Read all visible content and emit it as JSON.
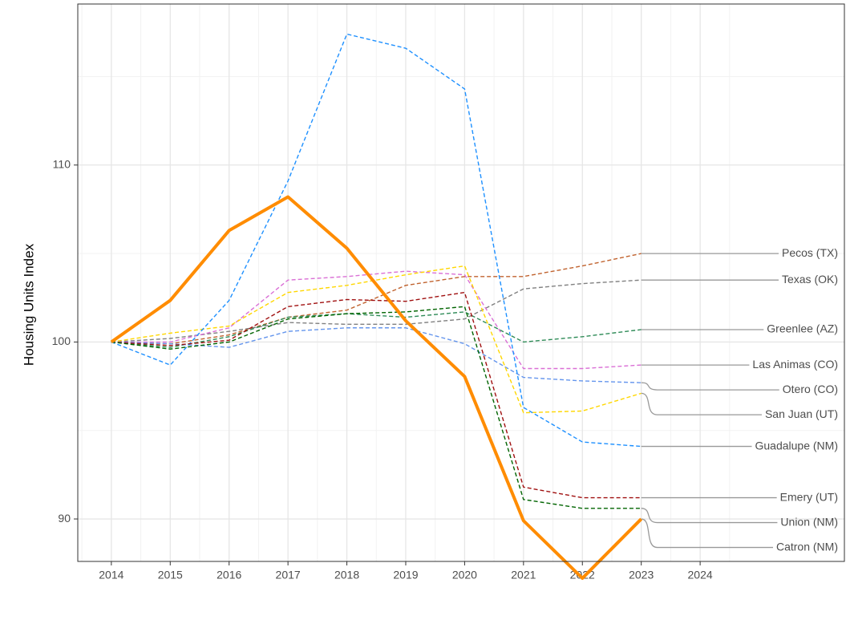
{
  "chart_data": {
    "type": "line",
    "y_label": "Housing Units Index",
    "x": [
      2014,
      2015,
      2016,
      2017,
      2018,
      2019,
      2020,
      2021,
      2022,
      2023
    ],
    "xlim": [
      2013.43,
      2026.45
    ],
    "xticks": [
      2014,
      2015,
      2016,
      2017,
      2018,
      2019,
      2020,
      2021,
      2022,
      2023,
      2024
    ],
    "ylim": [
      87.6,
      119.1
    ],
    "yticks": [
      90,
      100,
      110
    ],
    "grid": true,
    "series": [
      {
        "name": "Pecos (TX)",
        "color": "#c0622e",
        "values": [
          100,
          99.9,
          100.4,
          101.4,
          101.8,
          103.2,
          103.7,
          103.7,
          104.3,
          105.0
        ]
      },
      {
        "name": "Texas (OK)",
        "color": "#808080",
        "values": [
          100,
          100.2,
          100.6,
          101.1,
          101.0,
          101.0,
          101.3,
          103.0,
          103.3,
          103.5
        ]
      },
      {
        "name": "Greenlee (AZ)",
        "color": "#2e8b57",
        "values": [
          100,
          99.7,
          100.3,
          101.4,
          101.6,
          101.4,
          101.7,
          100.0,
          100.3,
          100.7
        ]
      },
      {
        "name": "Las Animas (CO)",
        "color": "#da70d6",
        "values": [
          100,
          100.0,
          100.8,
          103.5,
          103.7,
          104.0,
          103.8,
          98.5,
          98.5,
          98.7
        ]
      },
      {
        "name": "Otero (CO)",
        "color": "#6495ed",
        "values": [
          100,
          99.9,
          99.7,
          100.6,
          100.8,
          100.8,
          99.9,
          98.0,
          97.8,
          97.7
        ]
      },
      {
        "name": "San Juan (UT)",
        "color": "#ffd700",
        "values": [
          100,
          100.5,
          100.9,
          102.8,
          103.2,
          103.8,
          104.3,
          96.0,
          96.1,
          97.1
        ]
      },
      {
        "name": "Guadalupe (NM)",
        "color": "#1e90ff",
        "values": [
          100,
          98.7,
          102.35,
          109.1,
          117.4,
          116.6,
          114.3,
          96.3,
          94.35,
          94.1
        ]
      },
      {
        "name": "Emery (UT)",
        "color": "#a01010",
        "values": [
          100,
          99.8,
          100.1,
          102.0,
          102.4,
          102.3,
          102.8,
          91.8,
          91.2,
          91.2
        ]
      },
      {
        "name": "Union (NM)",
        "color": "#006400",
        "values": [
          100,
          99.6,
          100.0,
          101.3,
          101.6,
          101.7,
          102.0,
          91.1,
          90.6,
          90.6
        ]
      },
      {
        "name": "Catron (NM)",
        "color": "#ff8c00",
        "values": [
          100,
          102.35,
          106.3,
          108.2,
          105.3,
          101.2,
          98.05,
          89.9,
          86.65,
          90.0
        ]
      }
    ]
  }
}
